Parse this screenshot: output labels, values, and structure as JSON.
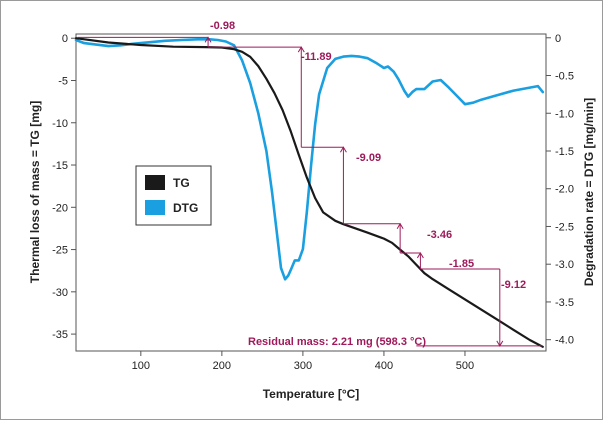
{
  "chart_data": {
    "type": "line",
    "xlabel": "Temperature [°C]",
    "ylabel_left": "Thermal loss of mass = TG [mg]",
    "ylabel_right": "Degradation rate = DTG [mg/min]",
    "xlim": [
      20,
      600
    ],
    "ylim_left": [
      -37,
      0.5
    ],
    "ylim_right": [
      -4.15,
      0.05
    ],
    "x_ticks": [
      100,
      200,
      300,
      400,
      500
    ],
    "y_ticks_left": [
      0,
      -5,
      -10,
      -15,
      -20,
      -25,
      -30,
      -35
    ],
    "y_ticks_right": [
      0,
      -0.5,
      -1.0,
      -1.5,
      -2.0,
      -2.5,
      -3.0,
      -3.5,
      -4.0
    ],
    "y_tick_labels_left": [
      "0",
      "-5",
      "-10",
      "-15",
      "-20",
      "-25",
      "-30",
      "-35"
    ],
    "y_tick_labels_right": [
      "0",
      "-0.5",
      "-1.0",
      "-1.5",
      "-2.0",
      "-2.5",
      "-3.0",
      "-3.5",
      "-4.0"
    ],
    "grid": false,
    "legend_placement": "center-left",
    "series": [
      {
        "name": "TG",
        "color": "#1a1a1a",
        "axis": "left",
        "x": [
          20,
          60,
          100,
          140,
          180,
          200,
          215,
          225,
          235,
          245,
          255,
          265,
          275,
          285,
          295,
          305,
          315,
          325,
          340,
          350,
          365,
          380,
          400,
          410,
          420,
          430,
          440,
          450,
          460,
          470,
          480,
          500,
          520,
          540,
          560,
          580,
          596
        ],
        "y": [
          0,
          -0.5,
          -0.8,
          -1.0,
          -1.05,
          -1.1,
          -1.3,
          -1.6,
          -2.2,
          -3.3,
          -4.8,
          -6.5,
          -8.5,
          -11.0,
          -13.8,
          -16.5,
          -18.9,
          -20.6,
          -21.6,
          -22.0,
          -22.5,
          -23.0,
          -23.7,
          -24.2,
          -25.0,
          -25.8,
          -26.8,
          -27.8,
          -28.5,
          -29.1,
          -29.7,
          -30.9,
          -32.1,
          -33.3,
          -34.5,
          -35.7,
          -36.5
        ]
      },
      {
        "name": "DTG",
        "color": "#1a9fe0",
        "axis": "right",
        "x": [
          20,
          30,
          45,
          60,
          75,
          90,
          110,
          130,
          150,
          170,
          185,
          195,
          205,
          215,
          225,
          235,
          245,
          255,
          262,
          268,
          273,
          278,
          282,
          286,
          290,
          295,
          300,
          305,
          310,
          315,
          320,
          330,
          340,
          350,
          360,
          370,
          380,
          390,
          400,
          405,
          412,
          418,
          425,
          430,
          435,
          440,
          450,
          460,
          470,
          480,
          490,
          500,
          510,
          520,
          540,
          560,
          580,
          590,
          596
        ],
        "y": [
          -0.03,
          -0.07,
          -0.09,
          -0.11,
          -0.1,
          -0.08,
          -0.06,
          -0.04,
          -0.03,
          -0.02,
          -0.02,
          -0.03,
          -0.05,
          -0.1,
          -0.3,
          -0.6,
          -1.0,
          -1.5,
          -2.05,
          -2.6,
          -3.05,
          -3.2,
          -3.15,
          -3.05,
          -2.95,
          -2.95,
          -2.8,
          -2.3,
          -1.7,
          -1.15,
          -0.75,
          -0.4,
          -0.28,
          -0.25,
          -0.24,
          -0.25,
          -0.27,
          -0.33,
          -0.4,
          -0.38,
          -0.45,
          -0.55,
          -0.7,
          -0.78,
          -0.72,
          -0.68,
          -0.68,
          -0.58,
          -0.56,
          -0.66,
          -0.77,
          -0.88,
          -0.86,
          -0.82,
          -0.76,
          -0.7,
          -0.66,
          -0.64,
          -0.72
        ]
      }
    ],
    "annotations": {
      "stage_labels": [
        "-0.98",
        "-11.89",
        "-9.09",
        "-3.46",
        "-1.85",
        "-9.12"
      ],
      "residual": "Residual mass: 2.21 mg (598.3 °C)"
    },
    "annotation_color": "#9e1a5a"
  }
}
